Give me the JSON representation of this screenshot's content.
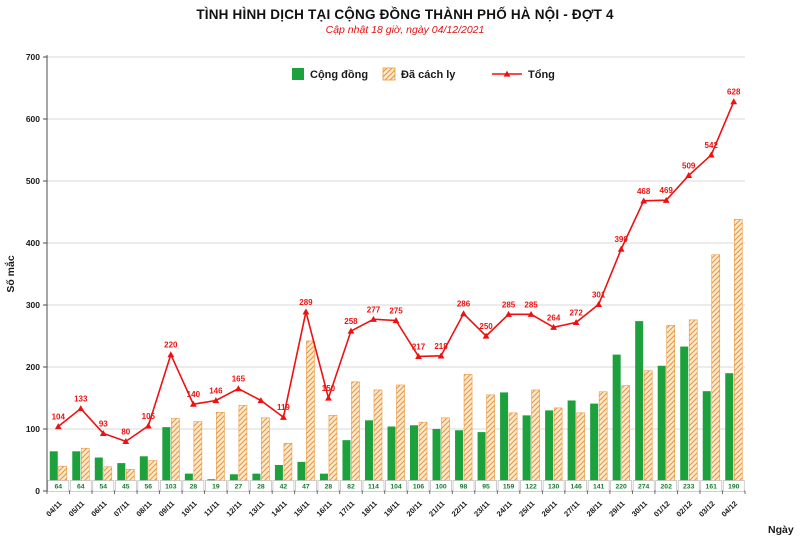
{
  "title": "TÌNH HÌNH DỊCH TẠI CỘNG ĐỒNG THÀNH PHỐ HÀ NỘI - ĐỢT 4",
  "subtitle": "Cập nhật 18 giờ, ngày 04/12/2021",
  "colors": {
    "community": "#1da13d",
    "quarantine_fill": "#fcead0",
    "quarantine_hatch": "#e9973c",
    "total_line": "#ee1111",
    "grid": "#d9d9d9",
    "axis": "#4d4d4d",
    "tick_text": "#1a1a1a",
    "value_text": "#157a2b",
    "label_red": "#ee1111"
  },
  "chart_data": {
    "type": "bar+line",
    "title": "TÌNH HÌNH DỊCH TẠI CỘNG ĐỒNG THÀNH PHỐ HÀ NỘI - ĐỢT 4",
    "subtitle": "Cập nhật 18 giờ, ngày 04/12/2021",
    "xlabel": "Ngày",
    "ylabel": "Số mắc",
    "ylim": [
      0,
      700
    ],
    "yticks": [
      0,
      100,
      200,
      300,
      400,
      500,
      600,
      700
    ],
    "grid": true,
    "legend_position": "top",
    "categories": [
      "04/11",
      "05/11",
      "06/11",
      "07/11",
      "08/11",
      "09/11",
      "10/11",
      "11/11",
      "12/11",
      "13/11",
      "14/11",
      "15/11",
      "16/11",
      "17/11",
      "18/11",
      "19/11",
      "20/11",
      "21/11",
      "22/11",
      "23/11",
      "24/11",
      "25/11",
      "26/11",
      "27/11",
      "28/11",
      "29/11",
      "30/11",
      "01/12",
      "02/12",
      "03/12",
      "04/12"
    ],
    "series": [
      {
        "name": "Cộng đồng",
        "type": "bar",
        "color_key": "community",
        "values": [
          64,
          64,
          54,
          45,
          56,
          103,
          28,
          19,
          27,
          28,
          42,
          47,
          28,
          82,
          114,
          104,
          106,
          100,
          98,
          95,
          159,
          122,
          130,
          146,
          141,
          220,
          274,
          202,
          233,
          161,
          190
        ]
      },
      {
        "name": "Đã cách ly",
        "type": "bar",
        "color_key": "quarantine",
        "values": [
          40,
          69,
          39,
          35,
          49,
          117,
          112,
          127,
          138,
          118,
          77,
          242,
          122,
          176,
          163,
          171,
          111,
          118,
          188,
          155,
          126,
          163,
          134,
          126,
          160,
          170,
          194,
          267,
          276,
          381,
          438
        ]
      },
      {
        "name": "Tổng",
        "type": "line",
        "color_key": "total",
        "values": [
          104,
          133,
          93,
          80,
          105,
          220,
          140,
          146,
          165,
          146,
          119,
          289,
          150,
          258,
          277,
          275,
          217,
          218,
          286,
          250,
          285,
          285,
          264,
          272,
          301,
          390,
          468,
          469,
          509,
          542,
          628
        ],
        "labels": [
          "104",
          "133",
          "93",
          "80",
          "105",
          "220",
          "140",
          "146",
          "165",
          "",
          "119",
          "289",
          "150",
          "258",
          "277",
          "275",
          "217",
          "218",
          "286",
          "250",
          "285",
          "285",
          "264",
          "272",
          "301",
          "390",
          "468",
          "469",
          "509",
          "542",
          "628"
        ]
      }
    ]
  }
}
